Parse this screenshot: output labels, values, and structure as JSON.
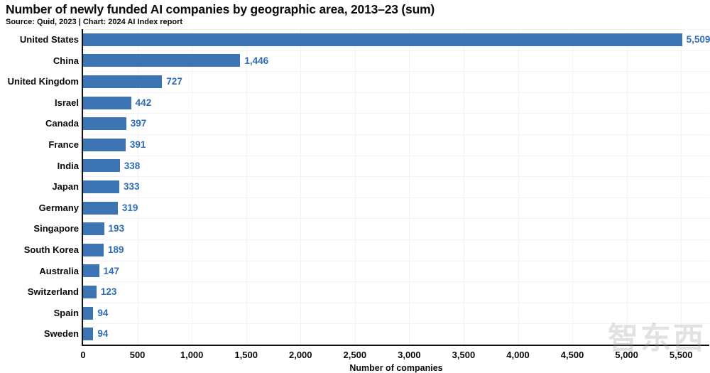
{
  "header": {
    "title": "Number of newly funded AI companies by geographic area, 2013–23 (sum)",
    "subtitle": "Source: Quid, 2023 | Chart: 2024 AI Index report"
  },
  "watermark_text": "智东西",
  "chart_data": {
    "type": "bar",
    "orientation": "horizontal",
    "title": "Number of newly funded AI companies by geographic area, 2013–23 (sum)",
    "categories": [
      "United States",
      "China",
      "United Kingdom",
      "Israel",
      "Canada",
      "France",
      "India",
      "Japan",
      "Germany",
      "Singapore",
      "South Korea",
      "Australia",
      "Switzerland",
      "Spain",
      "Sweden"
    ],
    "values": [
      5509,
      1446,
      727,
      442,
      397,
      391,
      338,
      333,
      319,
      193,
      189,
      147,
      123,
      94,
      94
    ],
    "value_labels": [
      "5,509",
      "1,446",
      "727",
      "442",
      "397",
      "391",
      "338",
      "333",
      "319",
      "193",
      "189",
      "147",
      "123",
      "94",
      "94"
    ],
    "xlabel": "Number of companies",
    "ylabel": "",
    "xlim": [
      0,
      5760
    ],
    "xticks": [
      0,
      500,
      1000,
      1500,
      2000,
      2500,
      3000,
      3500,
      4000,
      4500,
      5000,
      5500
    ],
    "xtick_labels": [
      "0",
      "500",
      "1,000",
      "1,500",
      "2,000",
      "2,500",
      "3,000",
      "3,500",
      "4,000",
      "4,500",
      "5,000",
      "5,500"
    ],
    "grid": true,
    "legend": "none",
    "colors": {
      "bar": "#3d74b4",
      "value_label": "#2e6db7",
      "axis": "#111111",
      "gridline": "#f3f3f3"
    }
  }
}
